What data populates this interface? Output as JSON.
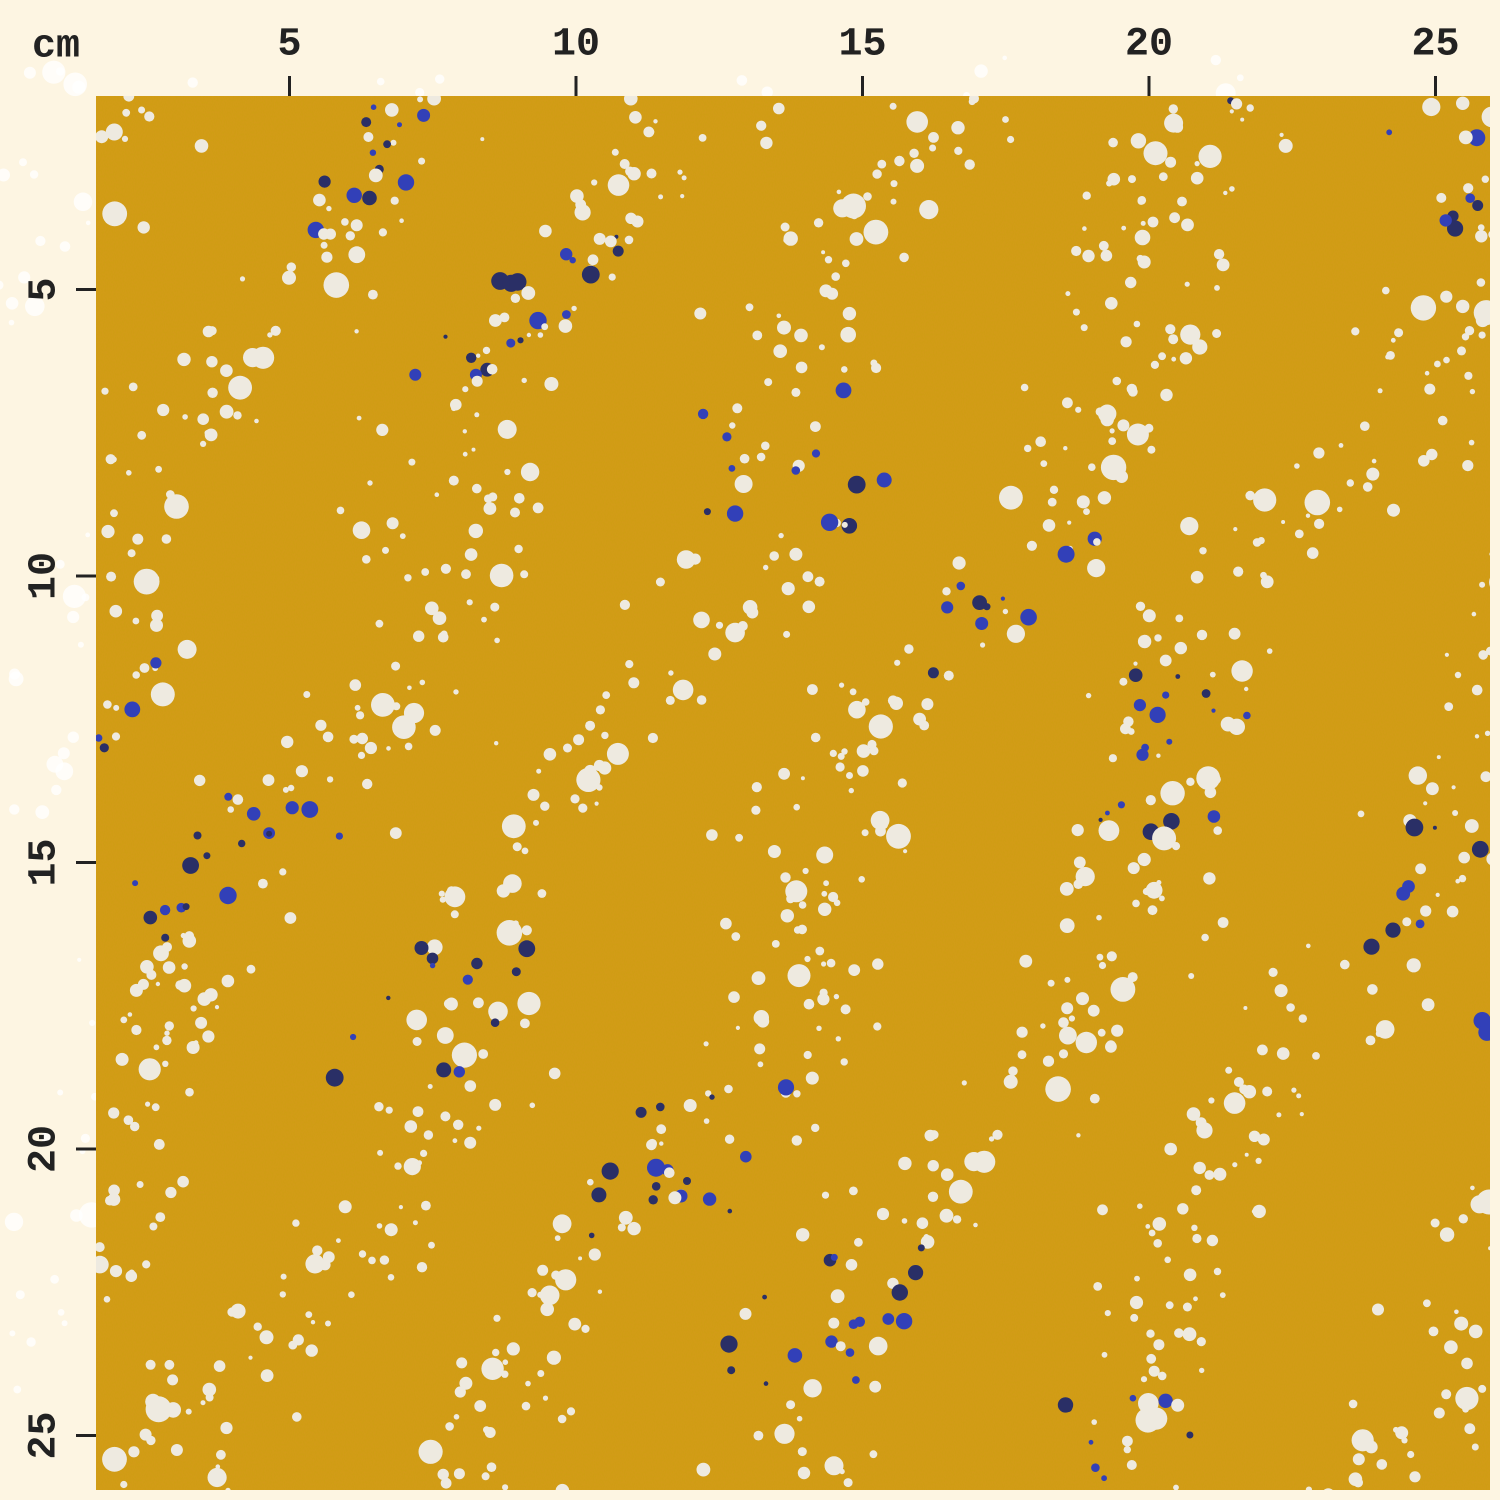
{
  "ruler": {
    "unit": "cm",
    "top_ticks": [
      5,
      10,
      15,
      20,
      25
    ],
    "left_ticks": [
      5,
      10,
      15,
      20,
      25
    ]
  }
}
